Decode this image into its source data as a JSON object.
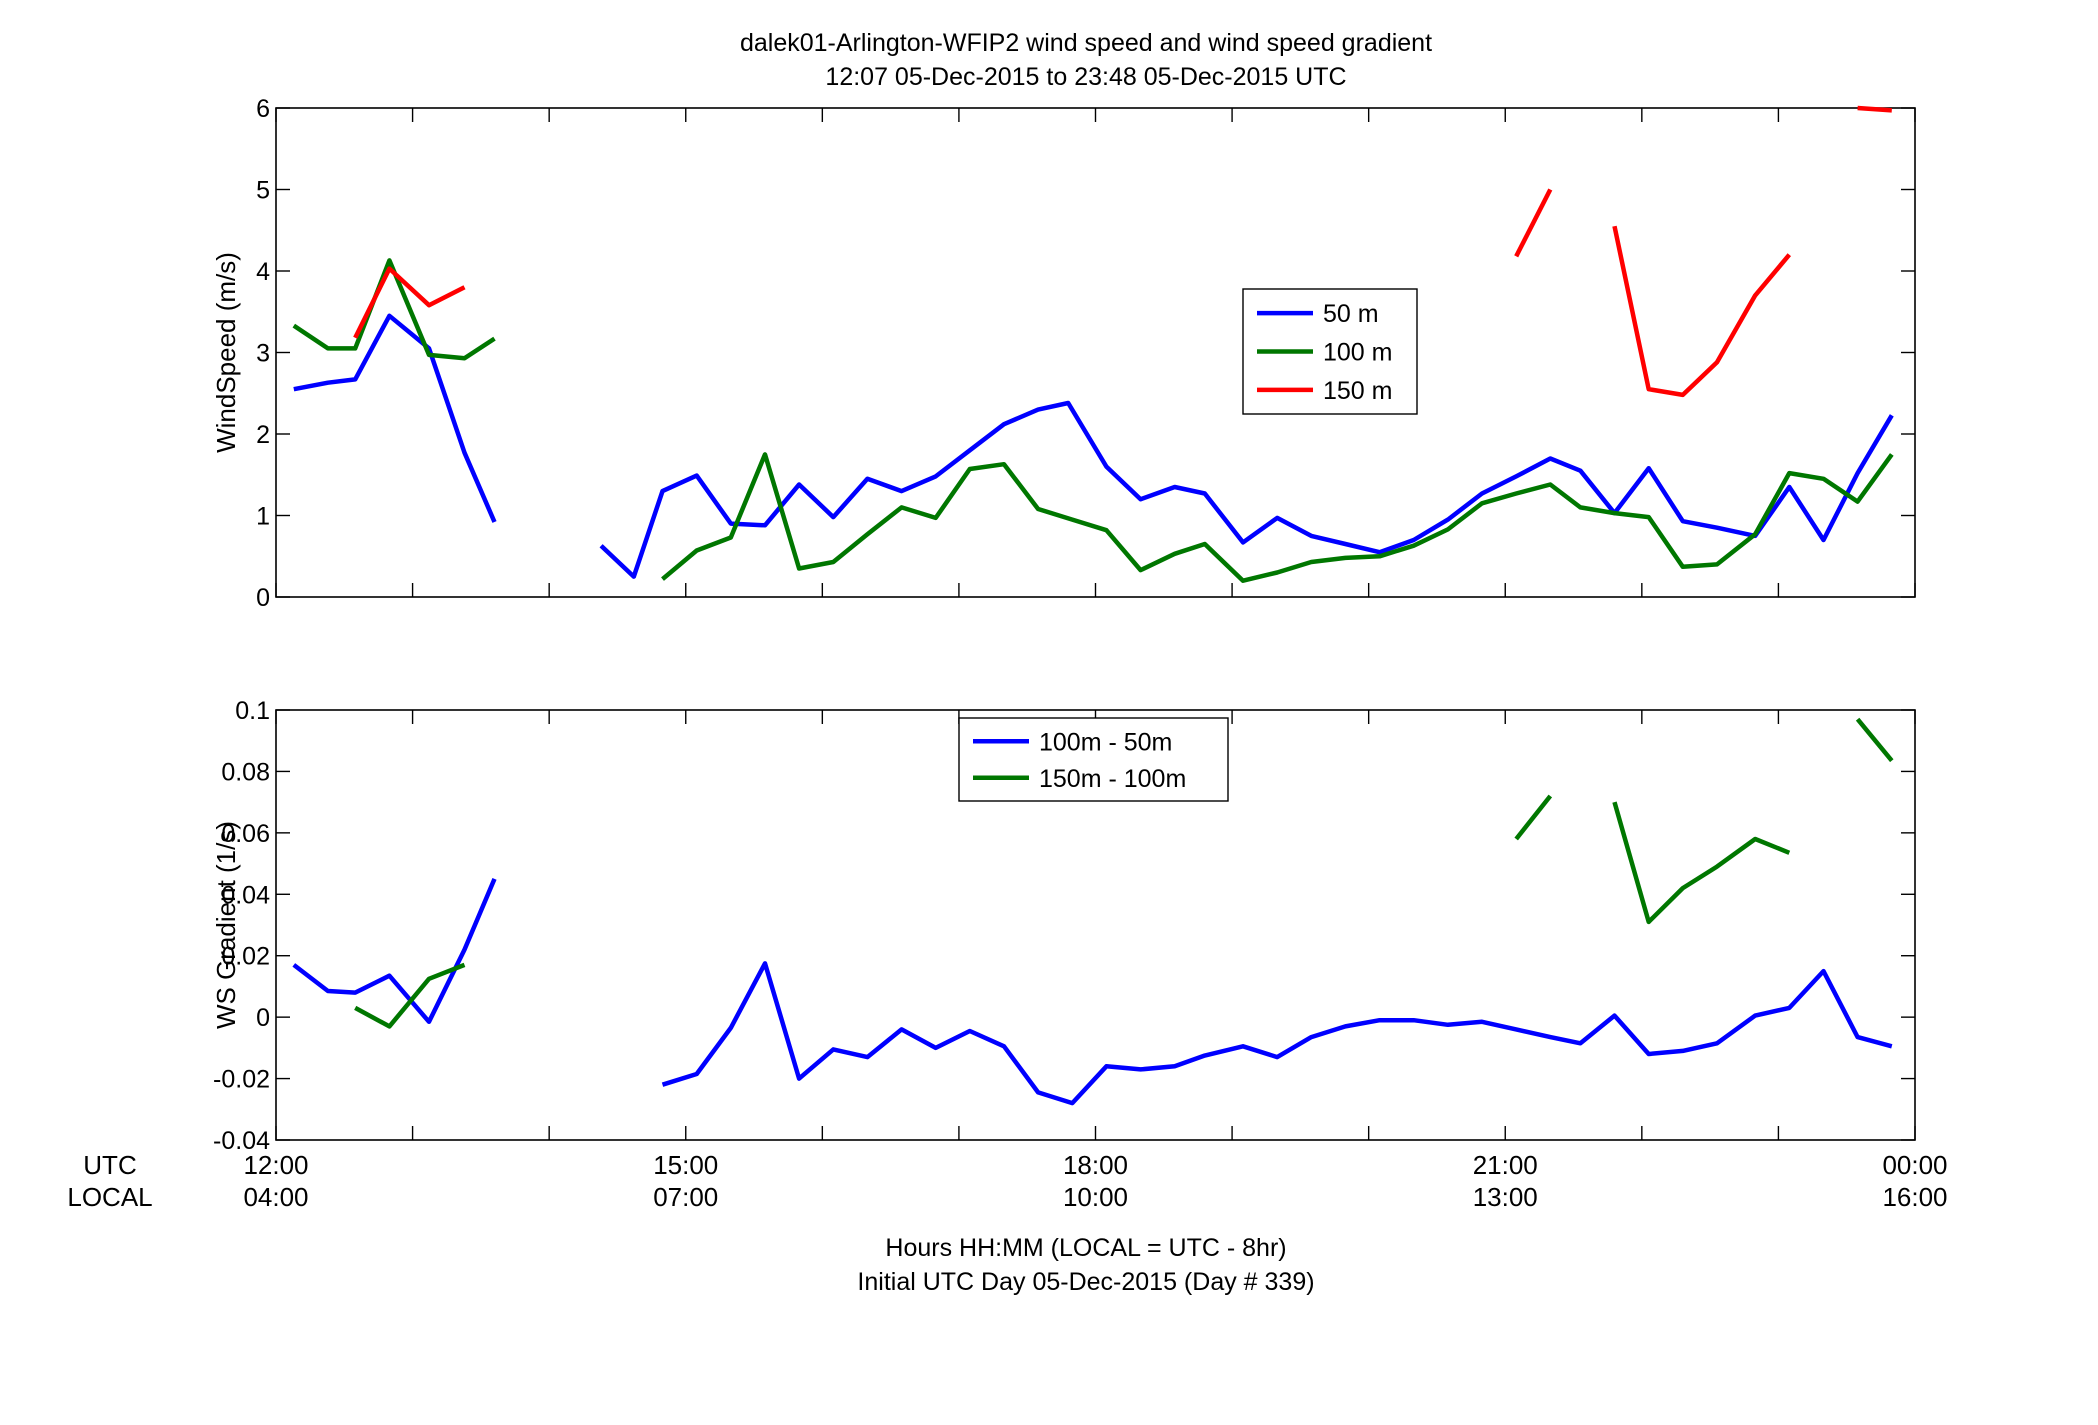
{
  "figure": {
    "title_line1": "dalek01-Arlington-WFIP2  wind speed and wind speed gradient",
    "title_line2": "12:07 05-Dec-2015 to 23:48 05-Dec-2015  UTC",
    "xlabel_line1": "Hours HH:MM  (LOCAL = UTC - 8hr)",
    "xlabel_line2": "Initial UTC Day 05-Dec-2015 (Day # 339)",
    "row_label_utc": "UTC",
    "row_label_local": "LOCAL",
    "x_ticks_utc": [
      "12:00",
      "15:00",
      "18:00",
      "21:00",
      "00:00"
    ],
    "x_ticks_local": [
      "04:00",
      "07:00",
      "10:00",
      "13:00",
      "16:00"
    ]
  },
  "chart_data": [
    {
      "type": "line",
      "name": "windspeed",
      "xlabel": "",
      "ylabel": "WindSpeed (m/s)",
      "xlim": [
        12,
        24
      ],
      "ylim": [
        0,
        6
      ],
      "y_ticks": [
        0,
        1,
        2,
        3,
        4,
        5,
        6
      ],
      "y_tick_labels": [
        "0",
        "1",
        "2",
        "3",
        "4",
        "5",
        "6"
      ],
      "x_ticks": [
        12,
        13,
        14,
        15,
        16,
        17,
        18,
        19,
        20,
        21,
        22,
        23,
        24
      ],
      "legend": "center-right",
      "grid": false,
      "series": [
        {
          "name": "50 m",
          "color": "#0000ff",
          "points": [
            [
              12.13,
              2.55
            ],
            [
              12.38,
              2.63
            ],
            [
              12.58,
              2.67
            ],
            [
              12.83,
              3.45
            ],
            [
              13.12,
              3.05
            ],
            [
              13.38,
              1.77
            ],
            [
              13.6,
              0.92
            ],
            null,
            [
              14.38,
              0.63
            ],
            [
              14.62,
              0.25
            ],
            [
              14.83,
              1.3
            ],
            [
              15.08,
              1.49
            ],
            [
              15.33,
              0.9
            ],
            [
              15.58,
              0.88
            ],
            [
              15.83,
              1.38
            ],
            [
              16.08,
              0.98
            ],
            [
              16.33,
              1.45
            ],
            [
              16.58,
              1.3
            ],
            [
              16.83,
              1.48
            ],
            [
              17.08,
              1.8
            ],
            [
              17.33,
              2.12
            ],
            [
              17.58,
              2.3
            ],
            [
              17.8,
              2.38
            ],
            [
              18.08,
              1.6
            ],
            [
              18.33,
              1.2
            ],
            [
              18.58,
              1.35
            ],
            [
              18.8,
              1.27
            ],
            [
              19.08,
              0.67
            ],
            [
              19.33,
              0.97
            ],
            [
              19.58,
              0.75
            ],
            [
              19.83,
              0.65
            ],
            [
              20.08,
              0.55
            ],
            [
              20.33,
              0.7
            ],
            [
              20.58,
              0.95
            ],
            [
              20.83,
              1.27
            ],
            [
              21.08,
              1.48
            ],
            [
              21.33,
              1.7
            ],
            [
              21.55,
              1.55
            ],
            [
              21.8,
              1.03
            ],
            [
              22.05,
              1.58
            ],
            [
              22.3,
              0.93
            ],
            [
              22.55,
              0.85
            ],
            [
              22.83,
              0.75
            ],
            [
              23.08,
              1.35
            ],
            [
              23.33,
              0.7
            ],
            [
              23.58,
              1.52
            ],
            [
              23.83,
              2.23
            ]
          ]
        },
        {
          "name": "100 m",
          "color": "#007700",
          "points": [
            [
              12.13,
              3.33
            ],
            [
              12.38,
              3.05
            ],
            [
              12.58,
              3.05
            ],
            [
              12.83,
              4.13
            ],
            [
              13.12,
              2.97
            ],
            [
              13.38,
              2.93
            ],
            [
              13.6,
              3.17
            ],
            null,
            [
              14.83,
              0.22
            ],
            [
              15.08,
              0.57
            ],
            [
              15.33,
              0.73
            ],
            [
              15.58,
              1.75
            ],
            [
              15.83,
              0.35
            ],
            [
              16.08,
              0.43
            ],
            [
              16.33,
              0.77
            ],
            [
              16.58,
              1.1
            ],
            [
              16.83,
              0.97
            ],
            [
              17.08,
              1.57
            ],
            [
              17.33,
              1.63
            ],
            [
              17.58,
              1.08
            ],
            [
              17.83,
              0.95
            ],
            [
              18.08,
              0.82
            ],
            [
              18.33,
              0.33
            ],
            [
              18.58,
              0.53
            ],
            [
              18.8,
              0.65
            ],
            [
              19.08,
              0.2
            ],
            [
              19.33,
              0.3
            ],
            [
              19.58,
              0.43
            ],
            [
              19.83,
              0.48
            ],
            [
              20.08,
              0.5
            ],
            [
              20.33,
              0.63
            ],
            [
              20.58,
              0.83
            ],
            [
              20.83,
              1.15
            ],
            [
              21.08,
              1.27
            ],
            [
              21.33,
              1.38
            ],
            [
              21.55,
              1.1
            ],
            [
              21.8,
              1.03
            ],
            [
              22.05,
              0.98
            ],
            [
              22.3,
              0.37
            ],
            [
              22.55,
              0.4
            ],
            [
              22.83,
              0.77
            ],
            [
              23.08,
              1.52
            ],
            [
              23.33,
              1.45
            ],
            [
              23.58,
              1.17
            ],
            [
              23.83,
              1.75
            ]
          ]
        },
        {
          "name": "150 m",
          "color": "#ff0000",
          "points": [
            [
              12.58,
              3.18
            ],
            [
              12.83,
              4.03
            ],
            [
              13.12,
              3.58
            ],
            [
              13.38,
              3.8
            ],
            null,
            [
              21.08,
              4.18
            ],
            [
              21.33,
              5.0
            ],
            null,
            [
              21.8,
              4.55
            ],
            [
              22.05,
              2.55
            ],
            [
              22.3,
              2.48
            ],
            [
              22.55,
              2.88
            ],
            [
              22.83,
              3.7
            ],
            [
              23.08,
              4.2
            ],
            null,
            [
              23.58,
              6.0
            ],
            [
              23.83,
              5.97
            ]
          ]
        }
      ]
    },
    {
      "type": "line",
      "name": "gradient",
      "xlabel": "",
      "ylabel": "WS Gradient (1/s)",
      "xlim": [
        12,
        24
      ],
      "ylim": [
        -0.04,
        0.1
      ],
      "y_ticks": [
        -0.04,
        -0.02,
        0,
        0.02,
        0.04,
        0.06,
        0.08,
        0.1
      ],
      "y_tick_labels": [
        "-0.04",
        "-0.02",
        "0",
        "0.02",
        "0.04",
        "0.06",
        "0.08",
        "0.1"
      ],
      "x_ticks": [
        12,
        13,
        14,
        15,
        16,
        17,
        18,
        19,
        20,
        21,
        22,
        23,
        24
      ],
      "legend": "top-center",
      "grid": false,
      "series": [
        {
          "name": "100m - 50m",
          "color": "#0000ff",
          "points": [
            [
              12.13,
              0.017
            ],
            [
              12.38,
              0.0085
            ],
            [
              12.58,
              0.008
            ],
            [
              12.83,
              0.0135
            ],
            [
              13.12,
              -0.0015
            ],
            [
              13.38,
              0.022
            ],
            [
              13.6,
              0.045
            ],
            null,
            [
              14.83,
              -0.022
            ],
            [
              15.08,
              -0.0185
            ],
            [
              15.33,
              -0.0035
            ],
            [
              15.58,
              0.0175
            ],
            [
              15.83,
              -0.02
            ],
            [
              16.08,
              -0.0105
            ],
            [
              16.33,
              -0.013
            ],
            [
              16.58,
              -0.004
            ],
            [
              16.83,
              -0.01
            ],
            [
              17.08,
              -0.0045
            ],
            [
              17.33,
              -0.0095
            ],
            [
              17.58,
              -0.0245
            ],
            [
              17.83,
              -0.028
            ],
            [
              18.08,
              -0.016
            ],
            [
              18.33,
              -0.017
            ],
            [
              18.58,
              -0.016
            ],
            [
              18.8,
              -0.0125
            ],
            [
              19.08,
              -0.0095
            ],
            [
              19.33,
              -0.013
            ],
            [
              19.58,
              -0.0065
            ],
            [
              19.83,
              -0.003
            ],
            [
              20.08,
              -0.001
            ],
            [
              20.33,
              -0.001
            ],
            [
              20.58,
              -0.0025
            ],
            [
              20.83,
              -0.0015
            ],
            [
              21.08,
              -0.004
            ],
            [
              21.33,
              -0.0065
            ],
            [
              21.55,
              -0.0085
            ],
            [
              21.8,
              0.0005
            ],
            [
              22.05,
              -0.012
            ],
            [
              22.3,
              -0.011
            ],
            [
              22.55,
              -0.0085
            ],
            [
              22.83,
              0.0005
            ],
            [
              23.08,
              0.003
            ],
            [
              23.33,
              0.015
            ],
            [
              23.58,
              -0.0065
            ],
            [
              23.83,
              -0.0095
            ]
          ]
        },
        {
          "name": "150m - 100m",
          "color": "#007700",
          "points": [
            [
              12.58,
              0.003
            ],
            [
              12.83,
              -0.003
            ],
            [
              13.12,
              0.0125
            ],
            [
              13.38,
              0.017
            ],
            null,
            [
              21.08,
              0.058
            ],
            [
              21.33,
              0.072
            ],
            null,
            [
              21.8,
              0.07
            ],
            [
              22.05,
              0.031
            ],
            [
              22.3,
              0.042
            ],
            [
              22.55,
              0.049
            ],
            [
              22.83,
              0.058
            ],
            [
              23.08,
              0.0535
            ],
            null,
            [
              23.58,
              0.097
            ],
            [
              23.83,
              0.0835
            ]
          ]
        }
      ]
    }
  ]
}
